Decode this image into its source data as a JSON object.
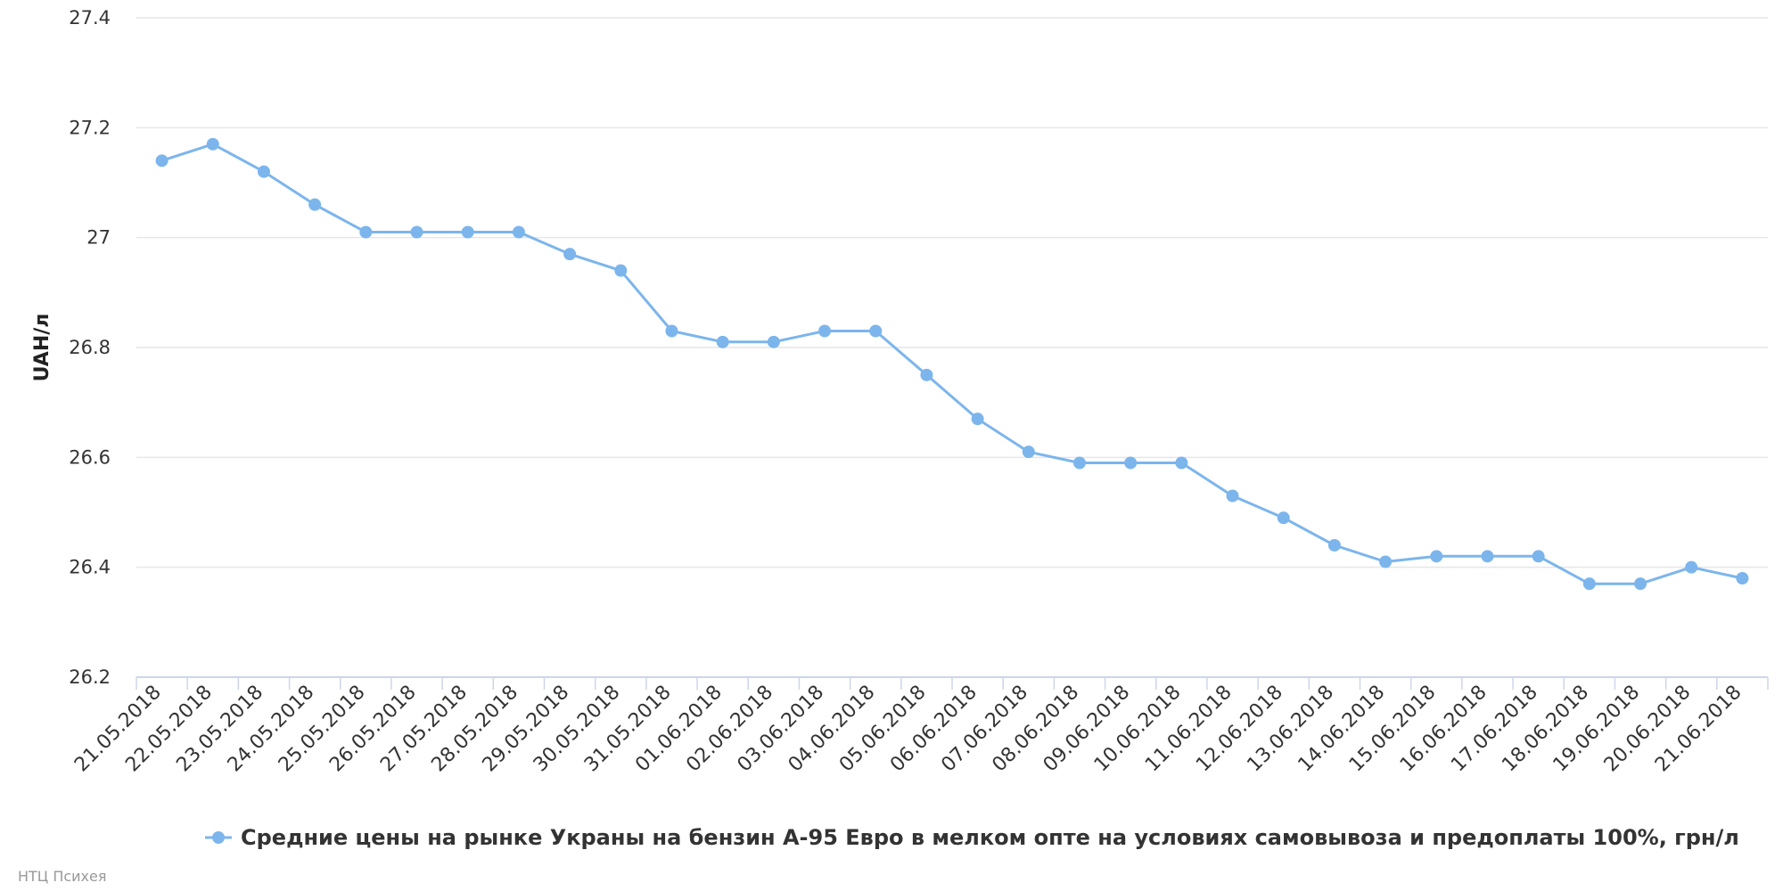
{
  "chart_data": {
    "type": "line",
    "ylabel": "UAH/л",
    "ylim": [
      26.2,
      27.4
    ],
    "yticks": [
      "26.2",
      "26.4",
      "26.6",
      "26.8",
      "27",
      "27.2",
      "27.4"
    ],
    "grid": true,
    "legend_position": "bottom",
    "categories": [
      "21.05.2018",
      "22.05.2018",
      "23.05.2018",
      "24.05.2018",
      "25.05.2018",
      "26.05.2018",
      "27.05.2018",
      "28.05.2018",
      "29.05.2018",
      "30.05.2018",
      "31.05.2018",
      "01.06.2018",
      "02.06.2018",
      "03.06.2018",
      "04.06.2018",
      "05.06.2018",
      "06.06.2018",
      "07.06.2018",
      "08.06.2018",
      "09.06.2018",
      "10.06.2018",
      "11.06.2018",
      "12.06.2018",
      "13.06.2018",
      "14.06.2018",
      "15.06.2018",
      "16.06.2018",
      "17.06.2018",
      "18.06.2018",
      "19.06.2018",
      "20.06.2018",
      "21.06.2018"
    ],
    "series": [
      {
        "name": "Средние цены на рынке Украны на бензин А-95 Евро в мелком опте на условиях самовывоза и предоплаты 100%, грн/л",
        "color": "#7cb5ec",
        "values": [
          27.14,
          27.17,
          27.12,
          27.06,
          27.01,
          27.01,
          27.01,
          27.01,
          26.97,
          26.94,
          26.83,
          26.81,
          26.81,
          26.83,
          26.83,
          26.75,
          26.67,
          26.61,
          26.59,
          26.59,
          26.59,
          26.53,
          26.49,
          26.44,
          26.41,
          26.42,
          26.42,
          26.42,
          26.37,
          26.37,
          26.4,
          26.38
        ]
      }
    ]
  },
  "credits": "НТЦ Психея"
}
